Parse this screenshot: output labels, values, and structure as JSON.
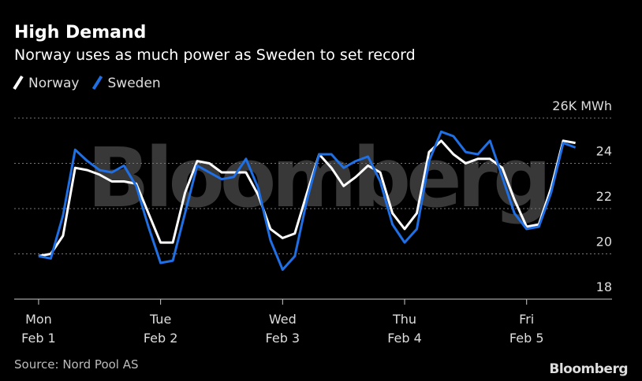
{
  "chart_data": {
    "type": "line",
    "title": "High Demand",
    "subtitle": "Norway uses as much power as Sweden to set record",
    "source": "Source: Nord Pool AS",
    "logo": "Bloomberg",
    "watermark": "Bloomberg",
    "x": [
      0,
      0.1,
      0.2,
      0.3,
      0.4,
      0.5,
      0.6,
      0.7,
      0.8,
      0.9,
      1,
      1.1,
      1.2,
      1.3,
      1.4,
      1.5,
      1.6,
      1.7,
      1.8,
      1.9,
      2,
      2.1,
      2.2,
      2.3,
      2.4,
      2.5,
      2.6,
      2.7,
      2.8,
      2.9,
      3,
      3.1,
      3.2,
      3.3,
      3.4,
      3.5,
      3.6,
      3.7,
      3.8,
      3.9,
      4,
      4.1,
      4.2,
      4.3,
      4.4
    ],
    "series": [
      {
        "name": "Norway",
        "color": "#ffffff",
        "values": [
          19.9,
          20.0,
          20.8,
          23.8,
          23.7,
          23.5,
          23.2,
          23.2,
          23.1,
          21.8,
          20.5,
          20.5,
          22.7,
          24.1,
          24.0,
          23.6,
          23.6,
          23.6,
          22.6,
          21.1,
          20.7,
          20.9,
          22.7,
          24.4,
          23.8,
          23.0,
          23.4,
          23.9,
          23.6,
          21.8,
          21.1,
          21.8,
          24.5,
          25.0,
          24.4,
          24.0,
          24.2,
          24.2,
          23.8,
          22.4,
          21.2,
          21.3,
          22.9,
          25.0,
          24.9
        ]
      },
      {
        "name": "Sweden",
        "color": "#1f6fe5",
        "values": [
          19.9,
          19.8,
          21.7,
          24.6,
          24.1,
          23.7,
          23.6,
          23.9,
          23.0,
          21.2,
          19.6,
          19.7,
          21.8,
          23.9,
          23.6,
          23.3,
          23.4,
          24.2,
          22.9,
          20.6,
          19.3,
          19.9,
          22.4,
          24.4,
          24.4,
          23.8,
          24.1,
          24.3,
          23.2,
          21.3,
          20.5,
          21.1,
          24.1,
          25.4,
          25.2,
          24.5,
          24.4,
          25.0,
          23.4,
          21.8,
          21.1,
          21.2,
          22.7,
          24.9,
          24.7
        ]
      }
    ],
    "xlim": [
      -0.2,
      4.7
    ],
    "xticks": [
      {
        "value": 0,
        "label": [
          "Mon",
          "Feb 1"
        ]
      },
      {
        "value": 1,
        "label": [
          "Tue",
          "Feb 2"
        ]
      },
      {
        "value": 2,
        "label": [
          "Wed",
          "Feb 3"
        ]
      },
      {
        "value": 3,
        "label": [
          "Thu",
          "Feb 4"
        ]
      },
      {
        "value": 4,
        "label": [
          "Fri",
          "Feb 5"
        ]
      }
    ],
    "ylim": [
      18,
      26
    ],
    "yticks": [
      18,
      20,
      22,
      {
        "value": 24,
        "label": "24"
      },
      {
        "value": 26,
        "label": "26K MWh"
      }
    ],
    "grid": true
  }
}
